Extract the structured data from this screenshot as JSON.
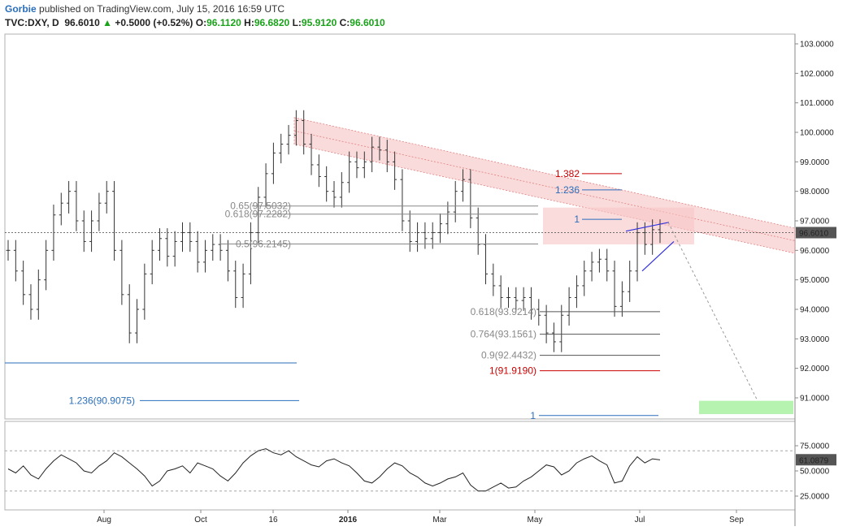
{
  "header": {
    "author": "Gorbie",
    "published": "published on TradingView.com, July 15, 2016 16:59 UTC",
    "symbol": "TVC:DXY, D",
    "last": "96.6010",
    "arrow": "▲",
    "change": "+0.5000 (+0.52%)",
    "o_label": "O:",
    "o_value": "96.1120",
    "h_label": "H:",
    "h_value": "96.6820",
    "l_label": "L:",
    "l_value": "95.9120",
    "c_label": "C:",
    "c_value": "96.6010"
  },
  "chart_data": [
    {
      "type": "ohlc",
      "symbol": "TVC:DXY",
      "interval": "D",
      "ylim": [
        90.3,
        103.3
      ],
      "y_ticks": [
        "103.0000",
        "102.0000",
        "101.0000",
        "100.0000",
        "99.0000",
        "98.0000",
        "97.0000",
        "96.0000",
        "95.0000",
        "94.0000",
        "93.0000",
        "92.0000",
        "91.0000"
      ],
      "x_ticks": [
        "Aug",
        "Oct",
        "16",
        "2016",
        "Mar",
        "May",
        "Jul",
        "Sep"
      ],
      "last_price_label": "96.6010",
      "close_series": [
        96.0,
        95.3,
        94.5,
        94.0,
        95.0,
        96.0,
        97.2,
        97.6,
        98.0,
        97.0,
        96.3,
        97.0,
        97.6,
        98.0,
        96.0,
        94.5,
        93.2,
        94.0,
        95.2,
        96.0,
        96.4,
        95.8,
        96.3,
        96.6,
        96.3,
        95.6,
        96.0,
        96.2,
        96.0,
        95.3,
        94.4,
        95.2,
        96.6,
        97.8,
        98.6,
        99.3,
        99.6,
        99.9,
        100.4,
        99.6,
        98.9,
        98.5,
        98.0,
        97.8,
        98.3,
        99.0,
        98.8,
        99.0,
        99.5,
        99.4,
        99.0,
        98.4,
        97.0,
        96.3,
        96.6,
        96.4,
        96.6,
        96.9,
        97.3,
        98.0,
        98.4,
        97.1,
        96.2,
        95.2,
        94.8,
        94.4,
        94.4,
        94.3,
        94.4,
        94.0,
        93.8,
        93.2,
        92.9,
        93.8,
        94.4,
        94.8,
        95.3,
        95.6,
        95.7,
        95.3,
        94.1,
        94.6,
        95.3,
        96.6,
        96.2,
        96.7,
        96.6
      ],
      "fibonacci_left": [
        {
          "label": "0.65(97.5032)",
          "value": 97.5032
        },
        {
          "label": "0.618(97.2282)",
          "value": 97.2282
        },
        {
          "label": "0.5(96.2145)",
          "value": 96.2145
        },
        {
          "label": "1.236(90.9075)",
          "value": 90.9075
        }
      ],
      "fibonacci_right": [
        {
          "label": "0.618(93.9214)",
          "value": 93.9214
        },
        {
          "label": "0.764(93.1561)",
          "value": 93.1561
        },
        {
          "label": "0.9(92.4432)",
          "value": 92.4432
        },
        {
          "label": "1(91.9190)",
          "value": 91.919,
          "color": "#cc0000"
        }
      ],
      "projection_levels": [
        {
          "label": "1.382",
          "value": 98.6,
          "color": "#cc0000"
        },
        {
          "label": "1.236",
          "value": 98.05,
          "color": "#2a6ebb"
        },
        {
          "label": "1",
          "value": 97.05,
          "color": "#2a6ebb"
        },
        {
          "label": "1",
          "value": 90.4,
          "color": "#2a6ebb"
        }
      ],
      "channel": {
        "upper_start": 100.5,
        "upper_end": 96.75,
        "lower_start": 99.6,
        "lower_end": 95.9,
        "color": "#f4b0b0"
      },
      "target_zone": {
        "low": 90.45,
        "high": 90.9,
        "color": "#b6f2b0"
      }
    },
    {
      "type": "line",
      "indicator": "RSI",
      "ylim": [
        15,
        82
      ],
      "y_ticks": [
        "75.0000",
        "50.0000",
        "25.0000"
      ],
      "bands": [
        70,
        30
      ],
      "last_value_label": "61.0879",
      "values": [
        52,
        48,
        55,
        46,
        42,
        52,
        60,
        66,
        62,
        58,
        50,
        48,
        55,
        60,
        68,
        64,
        58,
        52,
        45,
        35,
        40,
        50,
        52,
        55,
        48,
        58,
        55,
        52,
        45,
        40,
        48,
        58,
        65,
        70,
        72,
        68,
        66,
        70,
        64,
        60,
        56,
        54,
        60,
        62,
        58,
        55,
        48,
        40,
        38,
        44,
        52,
        58,
        55,
        48,
        44,
        38,
        35,
        38,
        42,
        44,
        48,
        36,
        30,
        30,
        34,
        38,
        33,
        34,
        40,
        44,
        50,
        56,
        54,
        46,
        50,
        58,
        62,
        65,
        60,
        56,
        38,
        40,
        55,
        64,
        58,
        62,
        61
      ]
    }
  ]
}
